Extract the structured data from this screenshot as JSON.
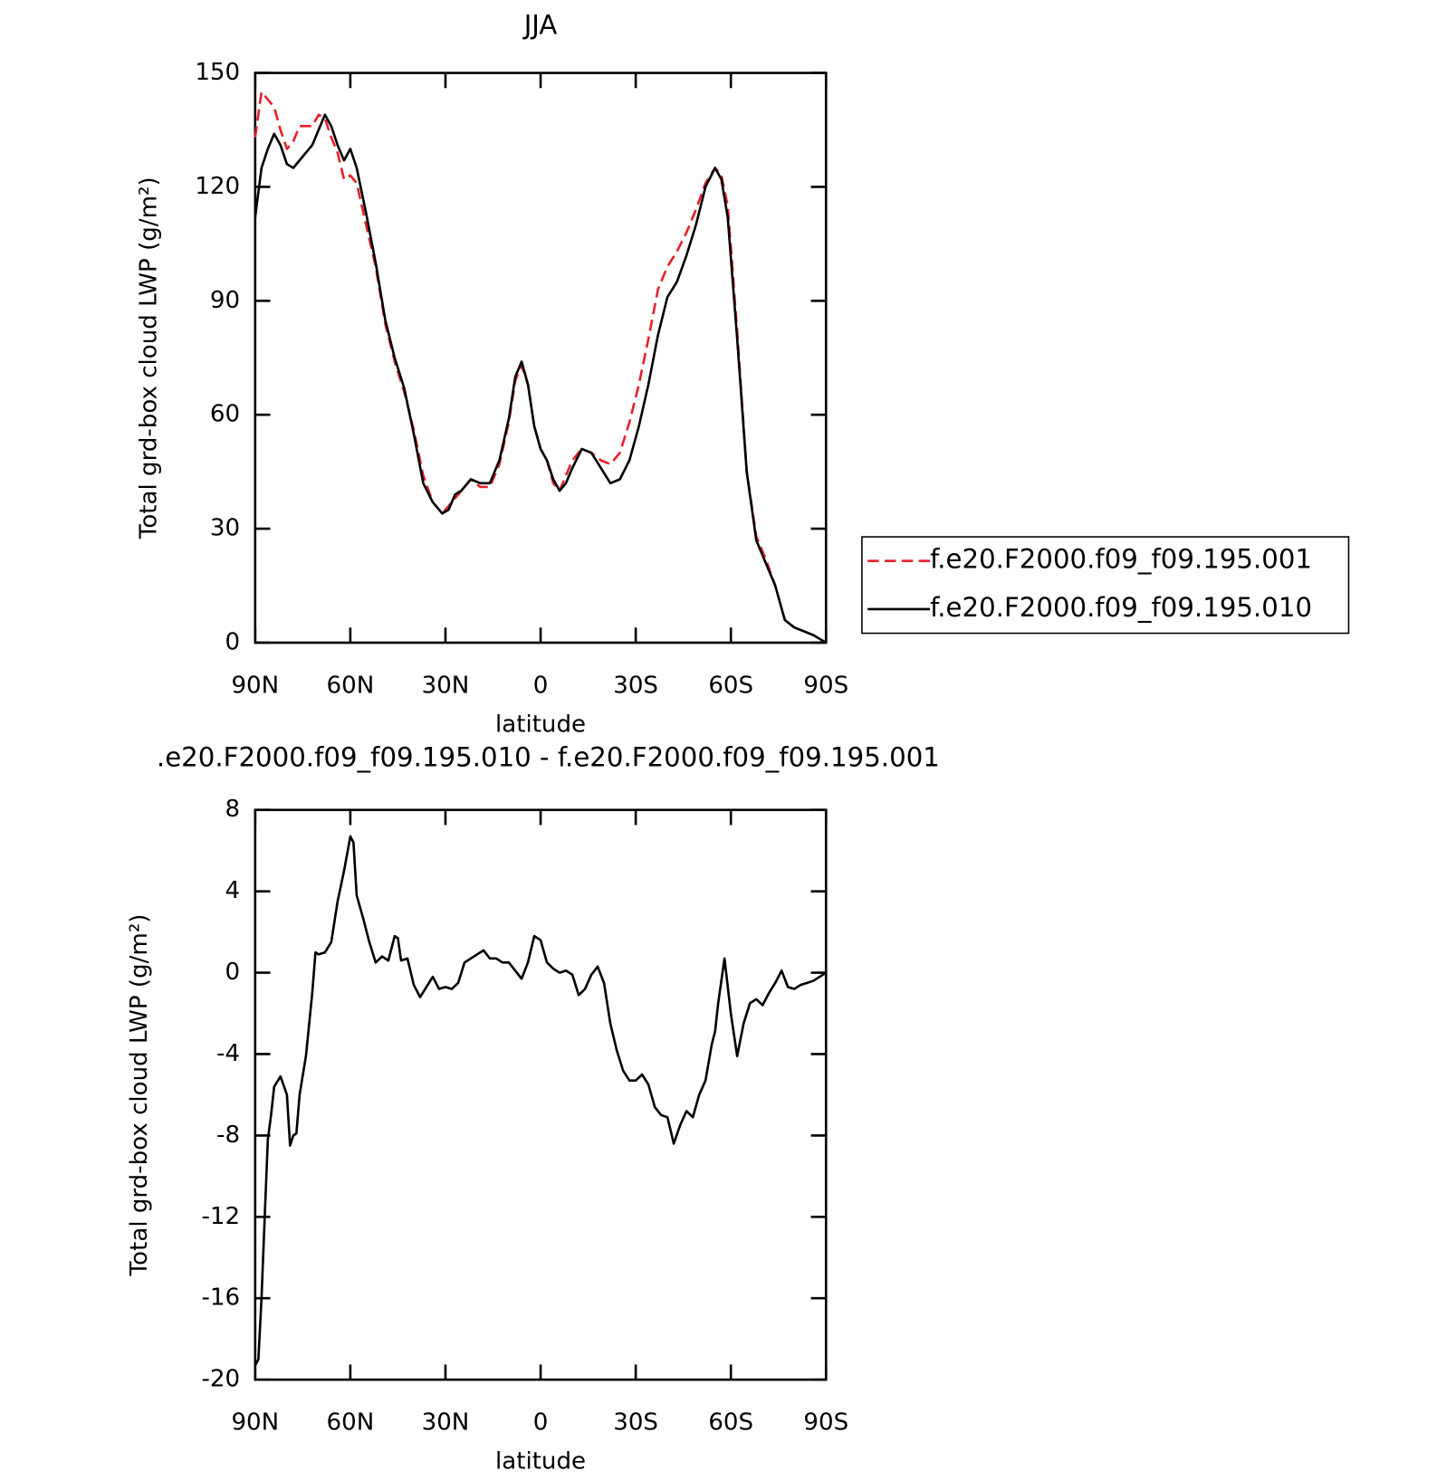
{
  "chart_data": [
    {
      "type": "line",
      "title": "JJA",
      "xlabel": "latitude",
      "ylabel": "Total grd-box cloud LWP (g/m²)",
      "x": [
        90,
        88,
        86,
        84,
        82,
        80,
        78,
        76,
        74,
        72,
        70,
        68,
        66,
        64,
        62,
        60,
        58,
        55,
        52,
        49,
        46,
        43,
        40,
        37,
        34,
        31,
        29,
        27,
        25,
        22,
        19,
        16,
        13,
        10,
        8,
        6,
        4,
        2,
        0,
        -2,
        -4,
        -6,
        -8,
        -10,
        -13,
        -16,
        -19,
        -22,
        -25,
        -28,
        -31,
        -34,
        -37,
        -40,
        -43,
        -46,
        -49,
        -52,
        -55,
        -57,
        -59,
        -62,
        -65,
        -68,
        -71,
        -74,
        -77,
        -80,
        -83,
        -86,
        -88,
        -90
      ],
      "series": [
        {
          "name": "f.e20.F2000.f09_f09.195.001",
          "color": "#e8202a",
          "dash": true,
          "values": [
            133,
            145,
            143,
            141,
            135,
            130,
            132,
            136,
            136,
            136,
            139,
            138,
            133,
            129,
            122,
            123,
            121,
            110,
            99,
            84,
            74,
            66,
            56,
            44,
            37,
            34,
            36,
            38,
            40,
            43,
            41,
            41,
            47,
            58,
            69,
            73,
            68,
            57,
            51,
            48,
            42,
            40,
            44,
            48,
            51,
            50,
            48,
            47,
            50,
            58,
            68,
            80,
            93,
            99,
            103,
            108,
            114,
            121,
            125,
            123,
            115,
            82,
            45,
            28,
            22,
            15,
            6,
            4,
            3,
            2,
            1,
            0
          ]
        },
        {
          "name": "f.e20.F2000.f09_f09.195.010",
          "color": "#000000",
          "dash": false,
          "values": [
            112,
            125,
            130,
            134,
            131,
            126,
            125,
            127,
            129,
            131,
            135,
            139,
            136,
            131,
            127,
            130,
            125,
            113,
            100,
            85,
            75,
            67,
            55,
            42,
            37,
            34,
            35,
            39,
            40,
            43,
            42,
            42,
            48,
            59,
            70,
            74,
            68,
            57,
            51,
            48,
            43,
            40,
            42,
            46,
            51,
            50,
            46,
            42,
            43,
            48,
            57,
            68,
            81,
            91,
            95,
            102,
            110,
            120,
            125,
            122,
            112,
            80,
            45,
            27,
            21,
            15,
            6,
            4,
            3,
            2,
            1,
            0
          ]
        }
      ],
      "xlim": [
        90,
        -90
      ],
      "xticks": [
        {
          "value": 90,
          "label": "90N"
        },
        {
          "value": 60,
          "label": "60N"
        },
        {
          "value": 30,
          "label": "30N"
        },
        0,
        {
          "value": -30,
          "label": "30S"
        },
        {
          "value": -60,
          "label": "60S"
        },
        {
          "value": -90,
          "label": "90S"
        }
      ],
      "ylim": [
        0,
        150
      ],
      "yticks": [
        0,
        30,
        60,
        90,
        120,
        150
      ],
      "legend": "right"
    },
    {
      "type": "line",
      "title": ".e20.F2000.f09_f09.195.010 - f.e20.F2000.f09_f09.195.001",
      "xlabel": "latitude",
      "ylabel": "Total grd-box cloud LWP (g/m²)",
      "x": [
        90,
        89,
        88,
        87,
        86,
        85,
        84,
        82,
        80,
        79,
        78,
        77,
        76,
        74,
        72,
        71,
        70,
        68,
        66,
        64,
        62,
        60,
        59,
        58,
        56,
        54,
        52,
        50,
        48,
        46,
        45,
        44,
        42,
        40,
        38,
        36,
        34,
        32,
        30,
        28,
        26,
        24,
        22,
        20,
        18,
        16,
        14,
        12,
        10,
        8,
        6,
        4,
        2,
        0,
        -2,
        -4,
        -6,
        -8,
        -10,
        -12,
        -14,
        -16,
        -18,
        -20,
        -22,
        -24,
        -26,
        -28,
        -30,
        -32,
        -34,
        -36,
        -38,
        -40,
        -42,
        -44,
        -46,
        -48,
        -50,
        -52,
        -54,
        -55,
        -56,
        -58,
        -60,
        -62,
        -64,
        -66,
        -68,
        -70,
        -72,
        -74,
        -76,
        -78,
        -80,
        -82,
        -84,
        -86,
        -88,
        -90
      ],
      "series": [
        {
          "color": "#000000",
          "dash": false,
          "values": [
            -19.3,
            -19,
            -16,
            -12,
            -8.2,
            -7,
            -5.6,
            -5.1,
            -6,
            -8.5,
            -8,
            -7.9,
            -6,
            -4.1,
            -1,
            1,
            0.9,
            1,
            1.5,
            3.5,
            5,
            6.7,
            6.4,
            3.8,
            2.7,
            1.5,
            0.5,
            0.8,
            0.6,
            1.8,
            1.7,
            0.6,
            0.7,
            -0.6,
            -1.2,
            -0.7,
            -0.2,
            -0.8,
            -0.7,
            -0.8,
            -0.5,
            0.5,
            0.7,
            0.9,
            1.1,
            0.7,
            0.7,
            0.5,
            0.5,
            0.1,
            -0.3,
            0.5,
            1.8,
            1.6,
            0.5,
            0.2,
            0,
            0.1,
            -0.1,
            -1.1,
            -0.8,
            -0.1,
            0.3,
            -0.5,
            -2.5,
            -3.8,
            -4.8,
            -5.3,
            -5.3,
            -5,
            -5.5,
            -6.6,
            -7,
            -7.1,
            -8.4,
            -7.5,
            -6.8,
            -7.1,
            -6,
            -5.3,
            -3.5,
            -2.9,
            -1.5,
            0.7,
            -2,
            -4.1,
            -2.5,
            -1.5,
            -1.3,
            -1.6,
            -1,
            -0.5,
            0.1,
            -0.7,
            -0.8,
            -0.6,
            -0.5,
            -0.4,
            -0.2,
            0
          ]
        }
      ],
      "xlim": [
        90,
        -90
      ],
      "xticks": [
        {
          "value": 90,
          "label": "90N"
        },
        {
          "value": 60,
          "label": "60N"
        },
        {
          "value": 30,
          "label": "30N"
        },
        0,
        {
          "value": -30,
          "label": "30S"
        },
        {
          "value": -60,
          "label": "60S"
        },
        {
          "value": -90,
          "label": "90S"
        }
      ],
      "ylim": [
        -20,
        8
      ],
      "yticks": [
        -20,
        -16,
        -12,
        -8,
        -4,
        0,
        4,
        8
      ]
    }
  ]
}
